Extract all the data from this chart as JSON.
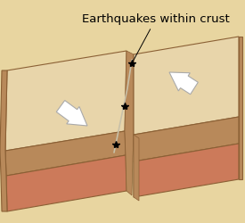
{
  "background_color": "#e8d5a0",
  "title": "Earthquakes within crust",
  "plate_top_color": "#e8d5aa",
  "plate_mid_color": "#b8895a",
  "plate_bot_color": "#cc7a5a",
  "outline_color": "#8B6035",
  "fault_color": "#c8c0a8",
  "star_color": "#000000",
  "arrow_color": "#ffffff",
  "arrow_edge": "#aaaaaa",
  "ann_color": "#000000",
  "ann_fontsize": 9.5,
  "fig_width": 2.75,
  "fig_height": 2.51,
  "dpi": 100
}
